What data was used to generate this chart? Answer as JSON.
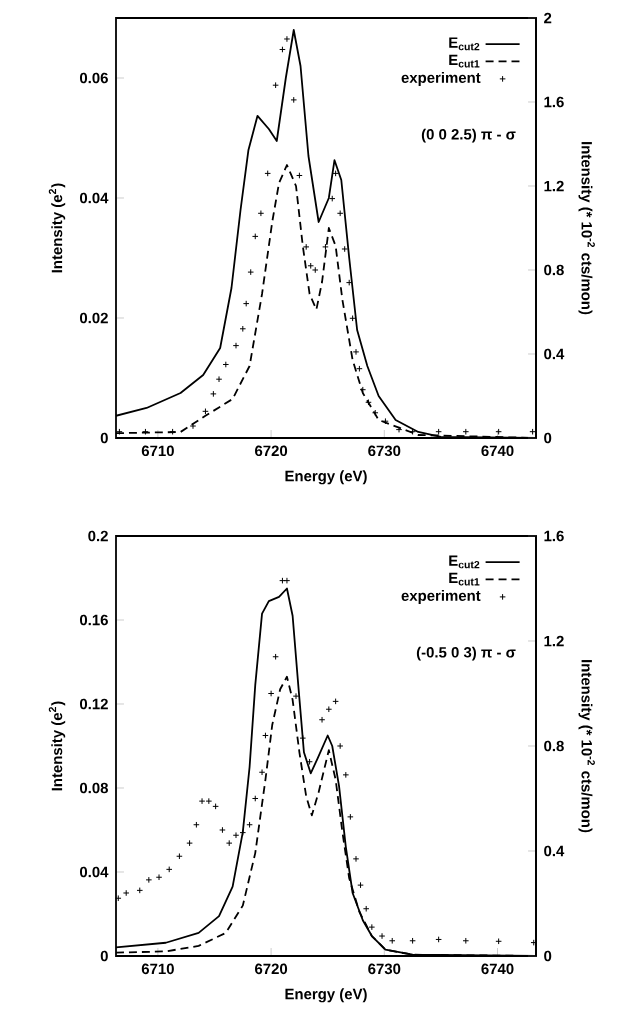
{
  "chart_data": [
    {
      "type": "line",
      "xlabel": "Energy (eV)",
      "ylabel": "Intensity (e$^{2}$)",
      "y2label": "Intensity (* 10$^{-2}$ cts/mon)",
      "xlim": [
        6706.3,
        6743.4
      ],
      "xticks": [
        6710,
        6720,
        6730,
        6740
      ],
      "ylim": [
        0,
        0.07
      ],
      "yticks": [
        0,
        0.02,
        0.04,
        0.06
      ],
      "y2lim": [
        0,
        2
      ],
      "y2ticks": [
        0,
        0.4,
        0.8,
        1.2,
        1.6,
        2
      ],
      "legend": "top right",
      "annotations": [
        "(0 0 2.5) π - σ"
      ],
      "series": [
        {
          "name": "E$_{cut2}$",
          "type": "line",
          "color": "#000000",
          "line_style": "solid",
          "x": [
            6706.3,
            6709,
            6712,
            6714,
            6715.5,
            6716.5,
            6717.3,
            6718.0,
            6718.8,
            6719.8,
            6720.5,
            6721.3,
            6722.0,
            6722.6,
            6723.3,
            6724.2,
            6725.1,
            6725.6,
            6726.2,
            6726.9,
            6727.6,
            6728.5,
            6729.5,
            6731,
            6733,
            6735,
            6743.4
          ],
          "values": [
            0.0037,
            0.005,
            0.0075,
            0.0105,
            0.015,
            0.025,
            0.038,
            0.048,
            0.0537,
            0.0515,
            0.0495,
            0.06,
            0.068,
            0.062,
            0.047,
            0.036,
            0.04,
            0.0463,
            0.043,
            0.03,
            0.018,
            0.012,
            0.007,
            0.003,
            0.001,
            0.0002,
            0
          ]
        },
        {
          "name": "E$_{cut1}$",
          "type": "line",
          "color": "#000000",
          "line_style": "dashed",
          "x": [
            6706.3,
            6712,
            6714.2,
            6716.6,
            6718.1,
            6719.2,
            6720.1,
            6720.7,
            6721.4,
            6722.2,
            6722.8,
            6723.4,
            6724.0,
            6724.5,
            6725.1,
            6725.7,
            6726.3,
            6727.2,
            6728.1,
            6729.5,
            6733,
            6743.4
          ],
          "values": [
            0.0008,
            0.001,
            0.0037,
            0.0065,
            0.012,
            0.024,
            0.036,
            0.0425,
            0.0455,
            0.042,
            0.032,
            0.024,
            0.0214,
            0.026,
            0.035,
            0.032,
            0.023,
            0.013,
            0.0075,
            0.003,
            0.0005,
            0
          ]
        },
        {
          "name": "experiment",
          "type": "scatter",
          "axis": "y2",
          "marker": "cross",
          "color": "#000000",
          "x": [
            6706.6,
            6708.9,
            6711.3,
            6713.1,
            6714.2,
            6714.9,
            6715.4,
            6716.0,
            6716.9,
            6717.5,
            6717.8,
            6718.2,
            6718.6,
            6719.1,
            6719.7,
            6720.4,
            6721.0,
            6721.4,
            6722.0,
            6722.5,
            6723.1,
            6723.5,
            6723.9,
            6724.8,
            6725.4,
            6725.7,
            6726.1,
            6726.5,
            6726.9,
            6727.2,
            6727.5,
            6727.8,
            6728.1,
            6728.6,
            6729.2,
            6730.1,
            6731.3,
            6732.5,
            6734.8,
            6737.2,
            6740.1,
            6743.1
          ],
          "values": [
            0.03,
            0.03,
            0.03,
            0.057,
            0.127,
            0.21,
            0.28,
            0.35,
            0.44,
            0.52,
            0.64,
            0.79,
            0.96,
            1.07,
            1.26,
            1.68,
            1.85,
            1.9,
            1.61,
            1.25,
            0.91,
            0.82,
            0.8,
            0.91,
            1.14,
            1.26,
            1.07,
            0.9,
            0.74,
            0.57,
            0.41,
            0.33,
            0.23,
            0.17,
            0.12,
            0.08,
            0.04,
            0.03,
            0.03,
            0.03,
            0.03,
            0.03
          ]
        }
      ]
    },
    {
      "type": "line",
      "xlabel": "Energy (eV)",
      "ylabel": "Intensity (e$^{2}$)",
      "y2label": "Intensity (* 10$^{-2}$ cts/mon)",
      "xlim": [
        6706.3,
        6743.4
      ],
      "xticks": [
        6710,
        6720,
        6730,
        6740
      ],
      "ylim": [
        0,
        0.2
      ],
      "yticks": [
        0,
        0.04,
        0.08,
        0.12,
        0.16,
        0.2
      ],
      "y2lim": [
        0,
        1.6
      ],
      "y2ticks": [
        0,
        0.4,
        0.8,
        1.2,
        1.6
      ],
      "legend": "top right",
      "annotations": [
        "(-0.5 0 3) π - σ"
      ],
      "series": [
        {
          "name": "E$_{cut2}$",
          "type": "line",
          "color": "#000000",
          "line_style": "solid",
          "x": [
            6706.3,
            6710.7,
            6713.6,
            6715.4,
            6716.6,
            6717.5,
            6718.1,
            6718.6,
            6719.2,
            6719.8,
            6720.7,
            6721.4,
            6721.9,
            6722.4,
            6722.9,
            6723.5,
            6724.1,
            6725.0,
            6725.4,
            6726.0,
            6726.6,
            6727.2,
            6728.1,
            6728.9,
            6730.1,
            6732.5,
            6743.4
          ],
          "values": [
            0.0041,
            0.0063,
            0.011,
            0.019,
            0.033,
            0.059,
            0.09,
            0.129,
            0.163,
            0.169,
            0.171,
            0.175,
            0.162,
            0.129,
            0.097,
            0.087,
            0.094,
            0.105,
            0.1,
            0.081,
            0.052,
            0.03,
            0.017,
            0.0095,
            0.003,
            0.0006,
            0
          ]
        },
        {
          "name": "E$_{cut1}$",
          "type": "line",
          "color": "#000000",
          "line_style": "dashed",
          "x": [
            6706.3,
            6710.7,
            6713.6,
            6716.0,
            6717.5,
            6718.6,
            6719.5,
            6720.1,
            6720.8,
            6721.4,
            6721.9,
            6722.5,
            6723.1,
            6723.6,
            6724.2,
            6725.1,
            6725.7,
            6726.3,
            6726.9,
            6727.8,
            6728.9,
            6730.1,
            6732.5,
            6743.4
          ],
          "values": [
            0.0016,
            0.0022,
            0.0048,
            0.011,
            0.024,
            0.049,
            0.084,
            0.11,
            0.127,
            0.133,
            0.122,
            0.097,
            0.076,
            0.067,
            0.078,
            0.098,
            0.084,
            0.059,
            0.037,
            0.021,
            0.0095,
            0.003,
            0.0006,
            0
          ]
        },
        {
          "name": "experiment",
          "type": "scatter",
          "axis": "y2",
          "marker": "cross",
          "color": "#000000",
          "x": [
            6706.5,
            6707.2,
            6708.4,
            6709.2,
            6710.1,
            6711.0,
            6711.9,
            6712.8,
            6713.4,
            6713.9,
            6714.5,
            6715.1,
            6715.7,
            6716.3,
            6716.9,
            6717.5,
            6718.1,
            6718.6,
            6719.2,
            6719.5,
            6720.0,
            6720.4,
            6721.0,
            6721.4,
            6722.2,
            6722.8,
            6723.4,
            6724.5,
            6725.1,
            6725.7,
            6726.1,
            6726.6,
            6727.0,
            6727.5,
            6727.9,
            6728.4,
            6728.9,
            6729.8,
            6730.7,
            6732.5,
            6734.8,
            6737.2,
            6740.1,
            6743.2
          ],
          "values": [
            0.22,
            0.24,
            0.25,
            0.29,
            0.3,
            0.33,
            0.38,
            0.43,
            0.5,
            0.59,
            0.59,
            0.57,
            0.48,
            0.43,
            0.46,
            0.47,
            0.5,
            0.6,
            0.7,
            0.84,
            1.0,
            1.14,
            1.43,
            1.43,
            0.99,
            0.83,
            0.74,
            0.9,
            0.94,
            0.97,
            0.8,
            0.69,
            0.53,
            0.37,
            0.27,
            0.18,
            0.11,
            0.076,
            0.058,
            0.058,
            0.063,
            0.058,
            0.056,
            0.051
          ]
        }
      ]
    }
  ]
}
